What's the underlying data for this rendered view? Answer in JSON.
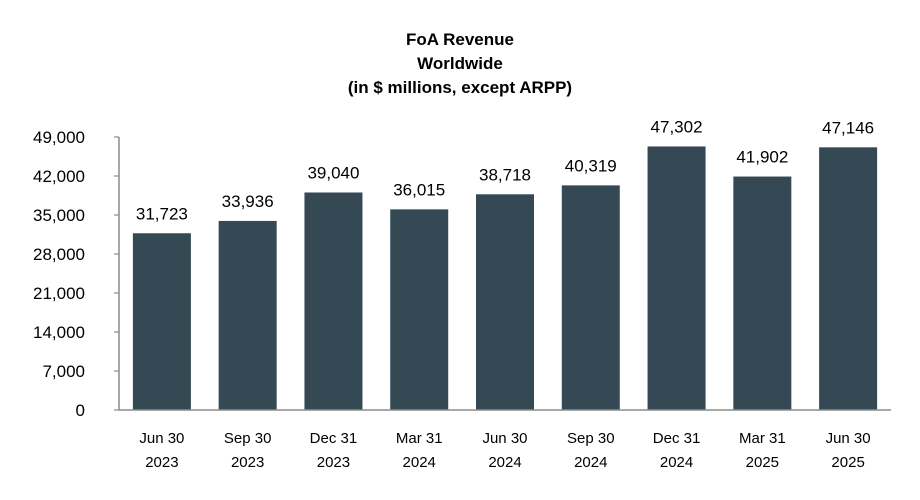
{
  "chart_data": {
    "type": "bar",
    "title_lines": [
      "FoA Revenue",
      "Worldwide",
      "(in $ millions, except ARPP)"
    ],
    "categories": [
      [
        "Jun 30",
        "2023"
      ],
      [
        "Sep 30",
        "2023"
      ],
      [
        "Dec 31",
        "2023"
      ],
      [
        "Mar 31",
        "2024"
      ],
      [
        "Jun 30",
        "2024"
      ],
      [
        "Sep 30",
        "2024"
      ],
      [
        "Dec 31",
        "2024"
      ],
      [
        "Mar 31",
        "2025"
      ],
      [
        "Jun 30",
        "2025"
      ]
    ],
    "values": [
      31723,
      33936,
      39040,
      36015,
      38718,
      40319,
      47302,
      41902,
      47146
    ],
    "value_labels": [
      "31,723",
      "33,936",
      "39,040",
      "36,015",
      "38,718",
      "40,319",
      "47,302",
      "41,902",
      "47,146"
    ],
    "yticks": [
      0,
      7000,
      14000,
      21000,
      28000,
      35000,
      42000,
      49000
    ],
    "ytick_labels": [
      "0",
      "7,000",
      "14,000",
      "21,000",
      "28,000",
      "35,000",
      "42,000",
      "49,000"
    ],
    "ylim": [
      0,
      49000
    ],
    "xlabel": "",
    "ylabel": "",
    "grid": false,
    "bar_color": "#344953"
  }
}
